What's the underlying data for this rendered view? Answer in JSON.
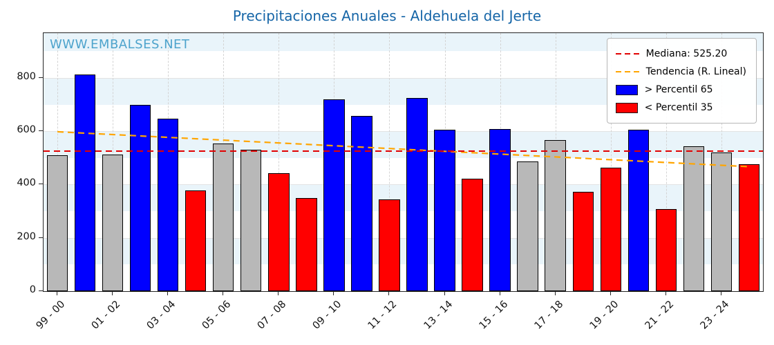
{
  "title": "Precipitaciones Anuales - Aldehuela del Jerte",
  "watermark": "WWW.EMBALSES.NET",
  "legend": {
    "median_label": "Mediana: 525.20",
    "trend_label": "Tendencia (R. Lineal)",
    "above_label": "> Percentil 65",
    "below_label": "< Percentil 35"
  },
  "colors": {
    "title": "#1565a7",
    "watermark": "#4da3cc",
    "above": "#0000ff",
    "below": "#ff0000",
    "mid": "#b8b8b8",
    "median_line": "#e10000",
    "trend_line": "#ffa500"
  },
  "chart_data": {
    "type": "bar",
    "title": "Precipitaciones Anuales - Aldehuela del Jerte",
    "categories": [
      "99 - 00",
      "00 - 01",
      "01 - 02",
      "02 - 03",
      "03 - 04",
      "04 - 05",
      "05 - 06",
      "06 - 07",
      "07 - 08",
      "08 - 09",
      "09 - 10",
      "10 - 11",
      "11 - 12",
      "12 - 13",
      "13 - 14",
      "14 - 15",
      "15 - 16",
      "16 - 17",
      "17 - 18",
      "18 - 19",
      "19 - 20",
      "20 - 21",
      "21 - 22",
      "22 - 23",
      "23 - 24",
      "24 - 25"
    ],
    "values": [
      510,
      812,
      513,
      698,
      648,
      377,
      553,
      530,
      442,
      350,
      720,
      658,
      344,
      726,
      605,
      423,
      608,
      487,
      568,
      374,
      463,
      605,
      309,
      543,
      520,
      475
    ],
    "classes": [
      "mid",
      "above",
      "mid",
      "above",
      "above",
      "below",
      "mid",
      "mid",
      "below",
      "below",
      "above",
      "above",
      "below",
      "above",
      "above",
      "below",
      "above",
      "mid",
      "mid",
      "below",
      "below",
      "above",
      "below",
      "mid",
      "mid",
      "below"
    ],
    "x_tick_labels": [
      "99 - 00",
      "01 - 02",
      "03 - 04",
      "05 - 06",
      "07 - 08",
      "09 - 10",
      "11 - 12",
      "13 - 14",
      "15 - 16",
      "17 - 18",
      "19 - 20",
      "21 - 22",
      "23 - 24"
    ],
    "x_tick_every": 2,
    "yticks": [
      0,
      200,
      400,
      600,
      800
    ],
    "ylim": [
      0,
      968
    ],
    "median": 525.2,
    "trend": {
      "start": 598,
      "end": 467
    },
    "grid": true,
    "legend_position": "upper right"
  }
}
